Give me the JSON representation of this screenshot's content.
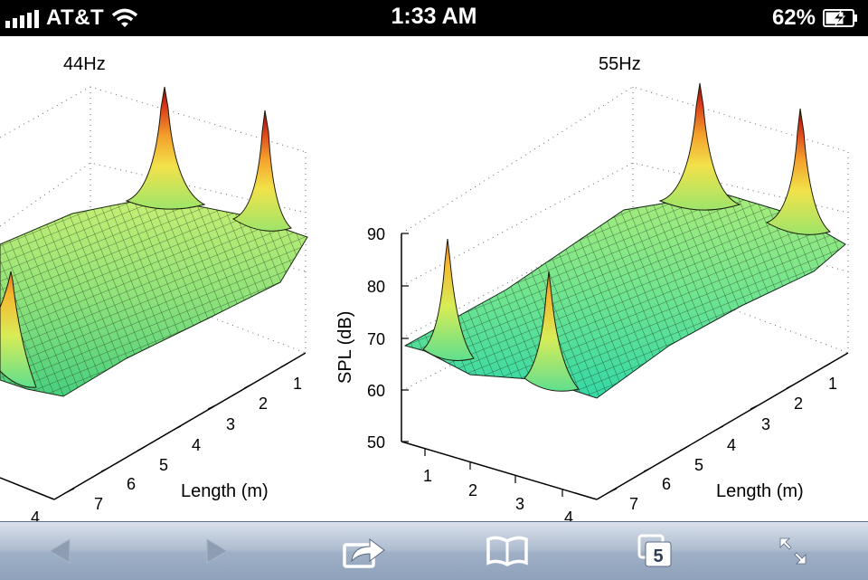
{
  "status_bar": {
    "carrier": "AT&T",
    "time": "1:33 AM",
    "battery_percent": "62%",
    "icons": [
      "signal-icon",
      "wifi-icon",
      "battery-charging-icon"
    ]
  },
  "figure": {
    "left_plot": {
      "title": "44Hz",
      "length_ticks": [
        "1",
        "2",
        "3",
        "4",
        "5",
        "6",
        "7"
      ],
      "length_label": "Length (m)",
      "width_ticks": [
        "4"
      ]
    },
    "right_plot": {
      "title": "55Hz",
      "spl_ticks": [
        "90",
        "80",
        "70",
        "60",
        "50"
      ],
      "spl_label": "SPL (dB)",
      "length_ticks": [
        "1",
        "2",
        "3",
        "4",
        "5",
        "6",
        "7"
      ],
      "length_label": "Length (m)",
      "width_ticks": [
        "1",
        "2",
        "3",
        "4"
      ]
    }
  },
  "toolbar": {
    "tabs_count": "5",
    "icons": [
      "back-arrow-icon",
      "forward-arrow-icon",
      "share-icon",
      "bookmarks-icon",
      "tabs-icon",
      "fullscreen-icon"
    ]
  },
  "colors": {
    "surface_low": "#5fdf8f",
    "surface_mid": "#b8ee6a",
    "peak_yellow": "#f5e04a",
    "peak_orange": "#f39a2a",
    "peak_red": "#b81a10",
    "toolbar_top": "#d9e1ec",
    "toolbar_bottom": "#8fa2bb"
  }
}
